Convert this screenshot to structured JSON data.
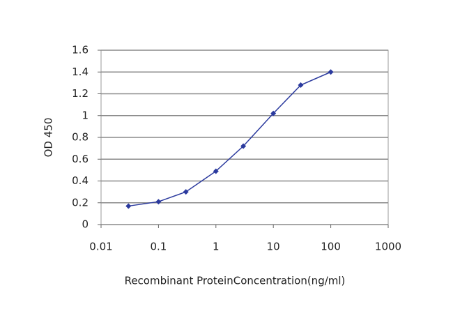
{
  "chart_data": {
    "type": "line",
    "x_label": "Recombinant ProteinConcentration(ng/ml)",
    "y_label": "OD 450",
    "x": [
      0.03,
      0.1,
      0.3,
      1,
      3,
      10,
      30,
      100
    ],
    "series": [
      {
        "color": "#2b3a9e",
        "values": [
          0.17,
          0.21,
          0.3,
          0.49,
          0.72,
          1.02,
          1.28,
          1.4
        ]
      }
    ],
    "xlim": [
      0.01,
      1000
    ],
    "xticks": [
      0.01,
      0.1,
      1,
      10,
      100,
      1000
    ],
    "x_log": true,
    "ylim": [
      0,
      1.6
    ],
    "yticks": [
      0,
      0.2,
      0.4,
      0.6,
      0.8,
      1,
      1.2,
      1.4,
      1.6
    ],
    "grid": true
  }
}
